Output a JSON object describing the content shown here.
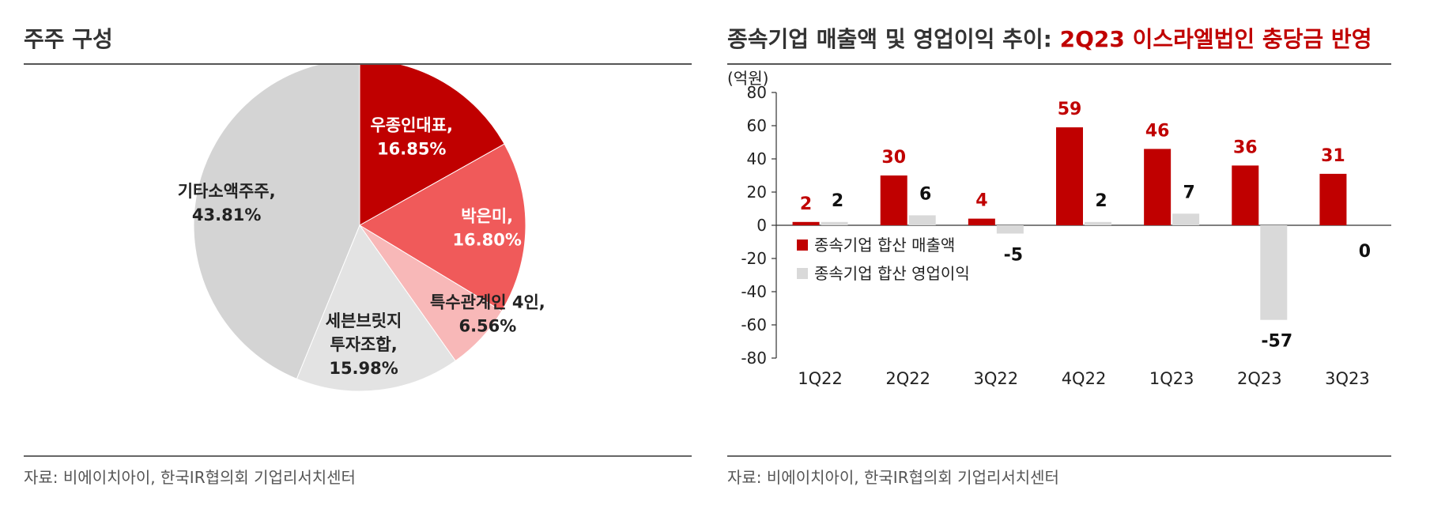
{
  "left": {
    "title": "주주 구성",
    "source": "자료: 비에이치아이, 한국IR협의회 기업리서치센터"
  },
  "right": {
    "title_prefix": "종속기업 매출액 및 영업이익 추이: ",
    "title_accent": "2Q23 이스라엘법인 충당금 반영",
    "source": "자료: 비에이치아이, 한국IR협의회 기업리서치센터"
  },
  "chart_data": [
    {
      "type": "pie",
      "title": "주주 구성",
      "slices": [
        {
          "label": [
            "우종인대표,",
            "16.85%"
          ],
          "value": 16.85,
          "color": "#c00000",
          "text_color": "#ffffff"
        },
        {
          "label": [
            "박은미,",
            "16.80%"
          ],
          "value": 16.8,
          "color": "#f05a5a",
          "text_color": "#ffffff"
        },
        {
          "label": [
            "특수관계인 4인,",
            "6.56%"
          ],
          "value": 6.56,
          "color": "#f8b8b8",
          "text_color": "#222222"
        },
        {
          "label": [
            "세븐브릿지",
            "투자조합,",
            "15.98%"
          ],
          "value": 15.98,
          "color": "#e3e3e3",
          "text_color": "#222222"
        },
        {
          "label": [
            "기타소액주주,",
            "43.81%"
          ],
          "value": 43.81,
          "color": "#d4d4d4",
          "text_color": "#222222"
        }
      ]
    },
    {
      "type": "bar",
      "title": "종속기업 매출액 및 영업이익 추이: 2Q23 이스라엘법인 충당금 반영",
      "unit_label": "(억원)",
      "categories": [
        "1Q22",
        "2Q22",
        "3Q22",
        "4Q22",
        "1Q23",
        "2Q23",
        "3Q23"
      ],
      "ylim": [
        -80,
        80
      ],
      "yticks": [
        80,
        60,
        40,
        20,
        0,
        -20,
        -40,
        -60,
        -80
      ],
      "series": [
        {
          "name": "종속기업 합산 매출액",
          "values": [
            2,
            30,
            4,
            59,
            46,
            36,
            31
          ],
          "color": "#c00000",
          "label_color": "#c00000"
        },
        {
          "name": "종속기업 합산 영업이익",
          "values": [
            2,
            6,
            -5,
            2,
            7,
            -57,
            0
          ],
          "color": "#d9d9d9",
          "label_color": "#111111"
        }
      ],
      "legend_position": "bottom-left"
    }
  ]
}
